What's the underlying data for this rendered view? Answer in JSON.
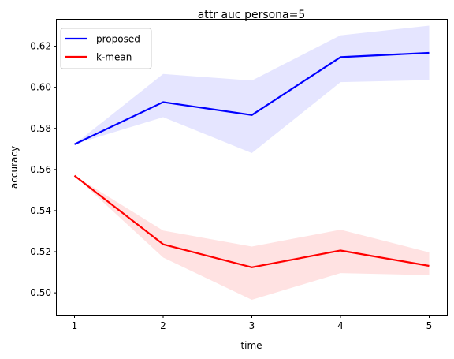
{
  "chart_data": {
    "type": "line",
    "title": "attr auc persona=5",
    "xlabel": "time",
    "ylabel": "accuracy",
    "x": [
      1,
      2,
      3,
      4,
      5
    ],
    "xticks": [
      "1",
      "2",
      "3",
      "4",
      "5"
    ],
    "yticks": [
      "0.50",
      "0.52",
      "0.54",
      "0.56",
      "0.58",
      "0.60",
      "0.62"
    ],
    "xlim": [
      0.8,
      5.2
    ],
    "ylim": [
      0.4893,
      0.6329
    ],
    "grid": false,
    "legend_position": "upper-left",
    "series": [
      {
        "name": "proposed",
        "color": "#0000ff",
        "band_color": "#e5e5ff",
        "values": [
          0.5723,
          0.5928,
          0.5865,
          0.6147,
          0.6168
        ],
        "lower": [
          0.5723,
          0.5855,
          0.568,
          0.6025,
          0.6035
        ],
        "upper": [
          0.5723,
          0.6065,
          0.6033,
          0.6253,
          0.63
        ]
      },
      {
        "name": "k-mean",
        "color": "#ff0000",
        "band_color": "#ffe2e2",
        "values": [
          0.557,
          0.5236,
          0.5124,
          0.5206,
          0.5131
        ],
        "lower": [
          0.557,
          0.5172,
          0.4966,
          0.5096,
          0.5086
        ],
        "upper": [
          0.557,
          0.5303,
          0.5225,
          0.5307,
          0.5197
        ]
      }
    ]
  }
}
